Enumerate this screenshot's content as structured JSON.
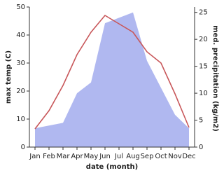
{
  "chart_data": {
    "type": "line",
    "x_label": "date (month)",
    "y_label": "max temp (C)",
    "y2_label": "med. precipitation (kg/m2)",
    "categories": [
      "Jan",
      "Feb",
      "Mar",
      "Apr",
      "May",
      "Jun",
      "Jul",
      "Aug",
      "Sep",
      "Oct",
      "Nov",
      "Dec"
    ],
    "series": [
      {
        "name": "max temp",
        "color": "#c8575a",
        "values": [
          6.5,
          13,
          22,
          33,
          41,
          47,
          44,
          41,
          34,
          30,
          19,
          7
        ]
      },
      {
        "name": "med. precipitation",
        "color": "#b0b8f0",
        "axis": "y2",
        "values": [
          3.5,
          4,
          4.5,
          10,
          12,
          23,
          24,
          25,
          16,
          11,
          6,
          3.5
        ]
      }
    ],
    "ylim": [
      0,
      50
    ],
    "yticks": [
      0,
      10,
      20,
      30,
      40,
      50
    ],
    "y2lim": [
      0,
      26
    ],
    "y2ticks": [
      0,
      5,
      10,
      15,
      20,
      25
    ]
  }
}
